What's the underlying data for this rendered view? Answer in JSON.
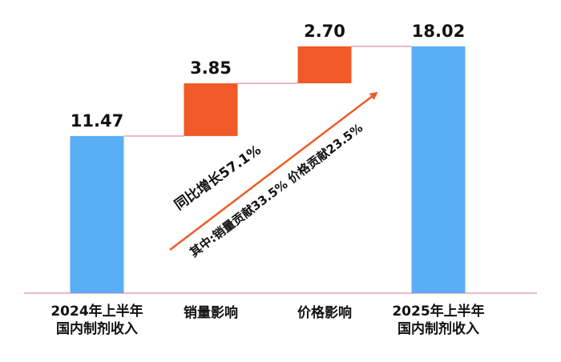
{
  "chart_data": {
    "type": "waterfall",
    "categories": [
      [
        "2024年上半年",
        "国内制剂收入"
      ],
      [
        "销量影响"
      ],
      [
        "价格影响"
      ],
      [
        "2025年上半年",
        "国内制剂收入"
      ]
    ],
    "values": [
      11.47,
      3.85,
      2.7,
      18.02
    ],
    "value_labels": [
      "11.47",
      "3.85",
      "2.70",
      "18.02"
    ],
    "kinds": [
      "total",
      "delta",
      "delta",
      "total"
    ],
    "color": "#5aaef5",
    "delta_color": "#f05a28",
    "ylim": [
      0,
      20
    ],
    "annotations": [
      "同比增长57.1%",
      "其中:销量贡献33.5%  价格贡献23.5%"
    ]
  }
}
